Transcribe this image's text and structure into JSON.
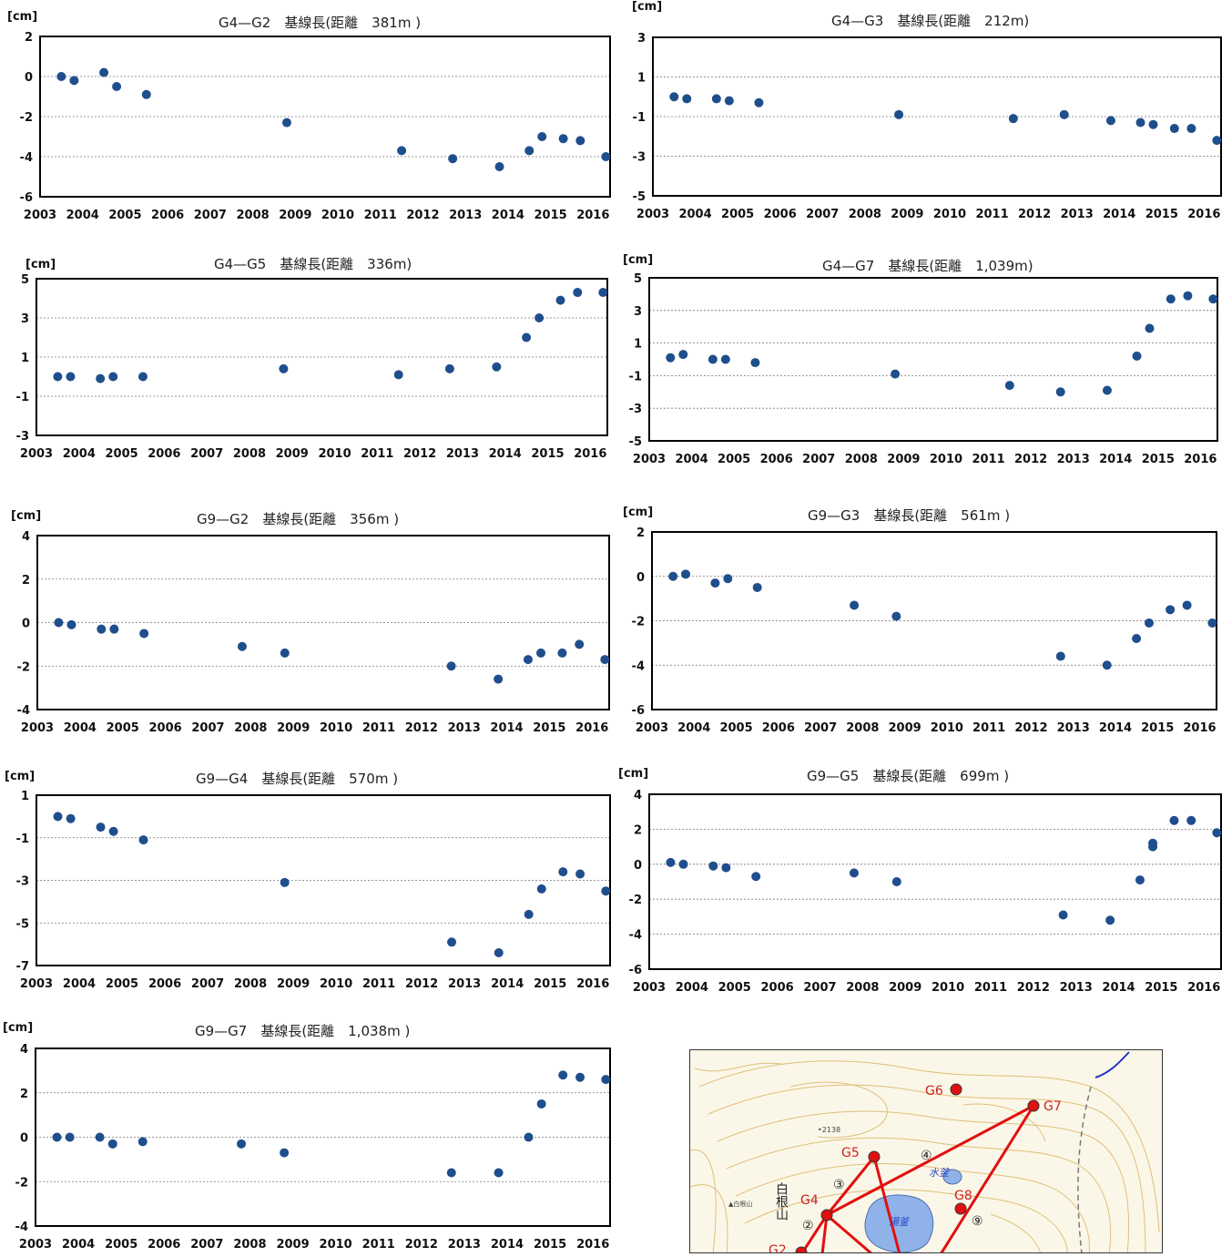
{
  "chart_data": [
    {
      "type": "scatter",
      "unit": "[cm]",
      "title": "G4—G2　基線長(距離　381m )",
      "ylim": [
        -6,
        2
      ],
      "yticks": [
        2,
        0,
        -2,
        -4,
        -6
      ],
      "xlim": [
        2003,
        2016.4
      ],
      "xticks": [
        2003,
        2004,
        2005,
        2006,
        2007,
        2008,
        2009,
        2010,
        2011,
        2012,
        2013,
        2014,
        2015,
        2016
      ],
      "x": [
        2003.5,
        2003.8,
        2004.5,
        2004.8,
        2005.5,
        2008.8,
        2011.5,
        2012.7,
        2013.8,
        2014.5,
        2014.8,
        2015.3,
        2015.7,
        2016.3
      ],
      "y": [
        0.0,
        -0.2,
        0.2,
        -0.5,
        -0.9,
        -2.3,
        -3.7,
        -4.1,
        -4.5,
        -3.7,
        -3.0,
        -3.1,
        -3.2,
        -4.0
      ]
    },
    {
      "type": "scatter",
      "unit": "[cm]",
      "title": "G4—G3　基線長(距離　212m)",
      "ylim": [
        -5,
        3
      ],
      "yticks": [
        3,
        1,
        -1,
        -3,
        -5
      ],
      "xlim": [
        2003,
        2016.4
      ],
      "xticks": [
        2003,
        2004,
        2005,
        2006,
        2007,
        2008,
        2009,
        2010,
        2011,
        2012,
        2013,
        2014,
        2015,
        2016
      ],
      "x": [
        2003.5,
        2003.8,
        2004.5,
        2004.8,
        2005.5,
        2008.8,
        2011.5,
        2012.7,
        2013.8,
        2014.5,
        2014.8,
        2015.3,
        2015.7,
        2016.3
      ],
      "y": [
        -0.0,
        -0.1,
        -0.1,
        -0.2,
        -0.3,
        -0.9,
        -1.1,
        -0.9,
        -1.2,
        -1.3,
        -1.4,
        -1.6,
        -1.6,
        -2.2
      ]
    },
    {
      "type": "scatter",
      "unit": "[cm]",
      "title": "G4—G5　基線長(距離　336m)",
      "ylim": [
        -3,
        5
      ],
      "yticks": [
        5,
        3,
        1,
        -1,
        -3
      ],
      "xlim": [
        2003,
        2016.4
      ],
      "xticks": [
        2003,
        2004,
        2005,
        2006,
        2007,
        2008,
        2009,
        2010,
        2011,
        2012,
        2013,
        2014,
        2015,
        2016
      ],
      "x": [
        2003.5,
        2003.8,
        2004.5,
        2004.8,
        2005.5,
        2008.8,
        2011.5,
        2012.7,
        2013.8,
        2014.5,
        2014.8,
        2015.3,
        2015.7,
        2016.3
      ],
      "y": [
        0.0,
        0.0,
        -0.1,
        0.0,
        0.0,
        0.4,
        0.1,
        0.4,
        0.5,
        2.0,
        3.0,
        3.9,
        4.3,
        4.3
      ]
    },
    {
      "type": "scatter",
      "unit": "[cm]",
      "title": "G4—G7　基線長(距離　1,039m)",
      "ylim": [
        -5,
        5
      ],
      "yticks": [
        5,
        3,
        1,
        -1,
        -3,
        -5
      ],
      "xlim": [
        2003,
        2016.4
      ],
      "xticks": [
        2003,
        2004,
        2005,
        2006,
        2007,
        2008,
        2009,
        2010,
        2011,
        2012,
        2013,
        2014,
        2015,
        2016
      ],
      "x": [
        2003.5,
        2003.8,
        2004.5,
        2004.8,
        2005.5,
        2008.8,
        2011.5,
        2012.7,
        2013.8,
        2014.5,
        2014.8,
        2015.3,
        2015.7,
        2016.3
      ],
      "y": [
        0.1,
        0.3,
        0.0,
        0.0,
        -0.2,
        -0.9,
        -1.6,
        -2.0,
        -1.9,
        0.2,
        1.9,
        3.7,
        3.9,
        3.7
      ]
    },
    {
      "type": "scatter",
      "unit": "[cm]",
      "title": "G9—G2　基線長(距離　356m )",
      "ylim": [
        -4,
        4
      ],
      "yticks": [
        4,
        2,
        0,
        -2,
        -4
      ],
      "xlim": [
        2003,
        2016.4
      ],
      "xticks": [
        2003,
        2004,
        2005,
        2006,
        2007,
        2008,
        2009,
        2010,
        2011,
        2012,
        2013,
        2014,
        2015,
        2016
      ],
      "x": [
        2003.5,
        2003.8,
        2004.5,
        2004.8,
        2005.5,
        2007.8,
        2008.8,
        2012.7,
        2013.8,
        2014.5,
        2014.8,
        2015.3,
        2015.7,
        2016.3
      ],
      "y": [
        0.0,
        -0.1,
        -0.3,
        -0.3,
        -0.5,
        -1.1,
        -1.4,
        -2.0,
        -2.6,
        -1.7,
        -1.4,
        -1.4,
        -1.0,
        -1.7
      ]
    },
    {
      "type": "scatter",
      "unit": "[cm]",
      "title": "G9—G3　基線長(距離　561m )",
      "ylim": [
        -6,
        2
      ],
      "yticks": [
        2,
        0,
        -2,
        -4,
        -6
      ],
      "xlim": [
        2003,
        2016.4
      ],
      "xticks": [
        2003,
        2004,
        2005,
        2006,
        2007,
        2008,
        2009,
        2010,
        2011,
        2012,
        2013,
        2014,
        2015,
        2016
      ],
      "x": [
        2003.5,
        2003.8,
        2004.5,
        2004.8,
        2005.5,
        2007.8,
        2008.8,
        2012.7,
        2013.8,
        2014.5,
        2014.8,
        2015.3,
        2015.7,
        2016.3
      ],
      "y": [
        0.0,
        0.1,
        -0.3,
        -0.1,
        -0.5,
        -1.3,
        -1.8,
        -3.6,
        -4.0,
        -2.8,
        -2.1,
        -1.5,
        -1.3,
        -2.1
      ]
    },
    {
      "type": "scatter",
      "unit": "[cm]",
      "title": "G9—G4　基線長(距離　570m )",
      "ylim": [
        -7,
        1
      ],
      "yticks": [
        1,
        -1,
        -3,
        -5,
        -7
      ],
      "xlim": [
        2003,
        2016.4
      ],
      "xticks": [
        2003,
        2004,
        2005,
        2006,
        2007,
        2008,
        2009,
        2010,
        2011,
        2012,
        2013,
        2014,
        2015,
        2016
      ],
      "x": [
        2003.5,
        2003.8,
        2004.5,
        2004.8,
        2005.5,
        2008.8,
        2012.7,
        2013.8,
        2014.5,
        2014.8,
        2015.3,
        2015.7,
        2016.3
      ],
      "y": [
        -0.0,
        -0.1,
        -0.5,
        -0.7,
        -1.1,
        -3.1,
        -5.9,
        -6.4,
        -4.6,
        -3.4,
        -2.6,
        -2.7,
        -3.5
      ]
    },
    {
      "type": "scatter",
      "unit": "[cm]",
      "title": "G9—G5　基線長(距離　699m )",
      "ylim": [
        -6,
        4
      ],
      "yticks": [
        4,
        2,
        0,
        -2,
        -4,
        -6
      ],
      "xlim": [
        2003,
        2016.4
      ],
      "xticks": [
        2003,
        2004,
        2005,
        2006,
        2007,
        2008,
        2009,
        2010,
        2011,
        2012,
        2013,
        2014,
        2015,
        2016
      ],
      "x": [
        2003.5,
        2003.8,
        2004.5,
        2004.8,
        2005.5,
        2007.8,
        2008.8,
        2012.7,
        2013.8,
        2014.5,
        2014.8,
        2014.8,
        2015.3,
        2015.7,
        2016.3
      ],
      "y": [
        0.1,
        0.0,
        -0.1,
        -0.2,
        -0.7,
        -0.5,
        -1.0,
        -2.9,
        -3.2,
        -0.9,
        1.0,
        1.2,
        2.5,
        2.5,
        1.8
      ]
    },
    {
      "type": "scatter",
      "unit": "[cm]",
      "title": "G9—G7　基線長(距離　1,038m )",
      "ylim": [
        -4,
        4
      ],
      "yticks": [
        4,
        2,
        0,
        -2,
        -4
      ],
      "xlim": [
        2003,
        2016.4
      ],
      "xticks": [
        2003,
        2004,
        2005,
        2006,
        2007,
        2008,
        2009,
        2010,
        2011,
        2012,
        2013,
        2014,
        2015,
        2016
      ],
      "x": [
        2003.5,
        2003.8,
        2004.5,
        2004.8,
        2005.5,
        2007.8,
        2008.8,
        2012.7,
        2013.8,
        2014.5,
        2014.8,
        2015.3,
        2015.7,
        2016.3
      ],
      "y": [
        0.0,
        0.0,
        0.0,
        -0.3,
        -0.2,
        -0.3,
        -0.7,
        -1.6,
        -1.6,
        0.0,
        1.5,
        2.8,
        2.7,
        2.6
      ]
    }
  ],
  "colors": {
    "marker": "#1f4e8c",
    "grid": "#777777",
    "frame": "#000000"
  },
  "map": {
    "stations": [
      {
        "id": "G6",
        "label": "G6"
      },
      {
        "id": "G7",
        "label": "G7"
      },
      {
        "id": "G5",
        "label": "G5"
      },
      {
        "id": "G4",
        "label": "G4"
      },
      {
        "id": "G8",
        "label": "G8"
      },
      {
        "id": "G2",
        "label": "G2"
      }
    ],
    "circled_numbers": [
      "②",
      "③",
      "④",
      "⑨"
    ],
    "place_labels": [
      "白根山",
      "水釜",
      "湯釜",
      "•2138",
      "▲白根山"
    ],
    "colors": {
      "station": "#e01010",
      "line": "#e01010",
      "contour": "#d9b060",
      "lake": "#8fb3e8",
      "text_red": "#cc2222"
    }
  }
}
